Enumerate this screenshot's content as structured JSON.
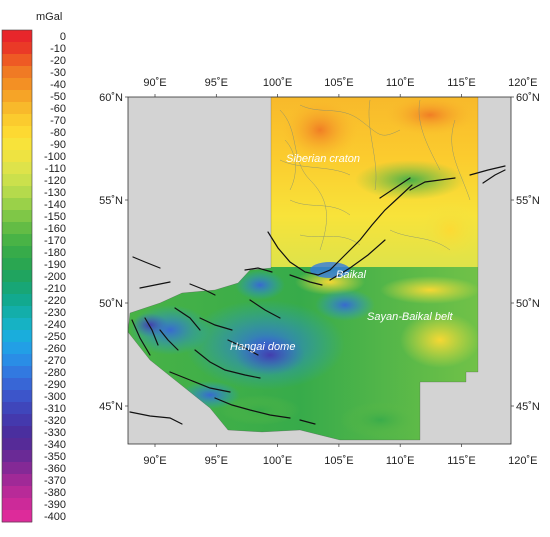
{
  "colorbar": {
    "unit": "mGal",
    "ticks": [
      "0",
      "-10",
      "-20",
      "-30",
      "-40",
      "-50",
      "-60",
      "-70",
      "-80",
      "-90",
      "-100",
      "-110",
      "-120",
      "-130",
      "-140",
      "-150",
      "-160",
      "-170",
      "-180",
      "-190",
      "-200",
      "-210",
      "-220",
      "-230",
      "-240",
      "-250",
      "-260",
      "-270",
      "-280",
      "-290",
      "-300",
      "-310",
      "-320",
      "-330",
      "-340",
      "-350",
      "-360",
      "-370",
      "-380",
      "-390",
      "-400"
    ],
    "colors": [
      "#e8262b",
      "#ea3a27",
      "#ee5a24",
      "#f07a24",
      "#f39024",
      "#f6a427",
      "#f8b92b",
      "#fbcb2e",
      "#fdd932",
      "#f8e33a",
      "#eee341",
      "#dee34a",
      "#cbe04c",
      "#b5da4c",
      "#9ad149",
      "#7fc747",
      "#63bc45",
      "#49b346",
      "#37ab4a",
      "#2aa651",
      "#20a45f",
      "#18a676",
      "#12a98f",
      "#13aeaa",
      "#16b2c4",
      "#1aaddc",
      "#229fe6",
      "#2a8de6",
      "#3279e0",
      "#3866d6",
      "#3c55ca",
      "#3f46bb",
      "#4439ad",
      "#4a2f9f",
      "#562b98",
      "#6a2a96",
      "#842996",
      "#a02997",
      "#b82a98",
      "#cc2a99",
      "#dd2b9a"
    ]
  },
  "axes": {
    "lon_ticks": [
      "90˚E",
      "95˚E",
      "100˚E",
      "105˚E",
      "110˚E",
      "115˚E",
      "120˚E"
    ],
    "lat_ticks": [
      "60˚N",
      "55˚N",
      "50˚N",
      "45˚N"
    ]
  },
  "labels": {
    "siberian": "Siberian craton",
    "baikal": "Baikal",
    "sayan": "Sayan-Baikal belt",
    "hangai": "Hangai dome"
  },
  "colors": {
    "background_gray": "#d3d3d3",
    "frame": "#333333",
    "fault": "#111111"
  }
}
